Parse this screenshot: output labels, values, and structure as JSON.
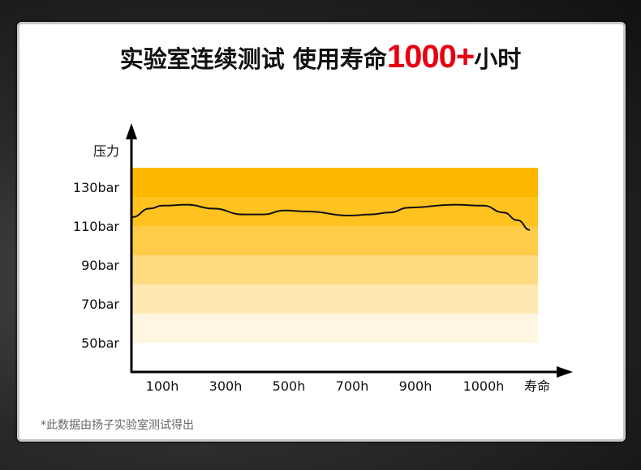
{
  "title": {
    "prefix": "实验室连续测试 使用寿命",
    "highlight": "1000+",
    "suffix": "小时"
  },
  "footnote": "*此数据由扬子实验室测试得出",
  "colors": {
    "highlight": "#e60012",
    "bands": [
      "#FFB800",
      "#FFC21E",
      "#FFCC48",
      "#FFDB82",
      "#FFE9B2",
      "#FFF6E2"
    ]
  },
  "chart_data": {
    "type": "line",
    "title": "",
    "ylabel": "压力",
    "xlabel": "寿命",
    "yticks": [
      "130bar",
      "110bar",
      "90bar",
      "70bar",
      "50bar"
    ],
    "ytick_values": [
      130,
      110,
      90,
      70,
      50
    ],
    "xticks": [
      "100h",
      "300h",
      "500h",
      "700h",
      "900h",
      "1000h"
    ],
    "xtick_values": [
      100,
      300,
      500,
      700,
      900,
      1000
    ],
    "bands_bar": [
      [
        125,
        140
      ],
      [
        110,
        125
      ],
      [
        95,
        110
      ],
      [
        80,
        95
      ],
      [
        65,
        80
      ],
      [
        50,
        65
      ]
    ],
    "series": [
      {
        "points": [
          [
            5,
            114.6
          ],
          [
            60,
            119
          ],
          [
            100,
            120.5
          ],
          [
            180,
            121
          ],
          [
            260,
            119
          ],
          [
            356,
            116
          ],
          [
            420,
            116
          ],
          [
            485,
            118
          ],
          [
            560,
            117.5
          ],
          [
            690,
            115.4
          ],
          [
            760,
            116
          ],
          [
            818,
            117
          ],
          [
            880,
            119.5
          ],
          [
            957,
            121
          ],
          [
            1000,
            120.5
          ],
          [
            1029,
            117
          ],
          [
            1050,
            113
          ],
          [
            1068,
            108
          ]
        ]
      }
    ]
  }
}
